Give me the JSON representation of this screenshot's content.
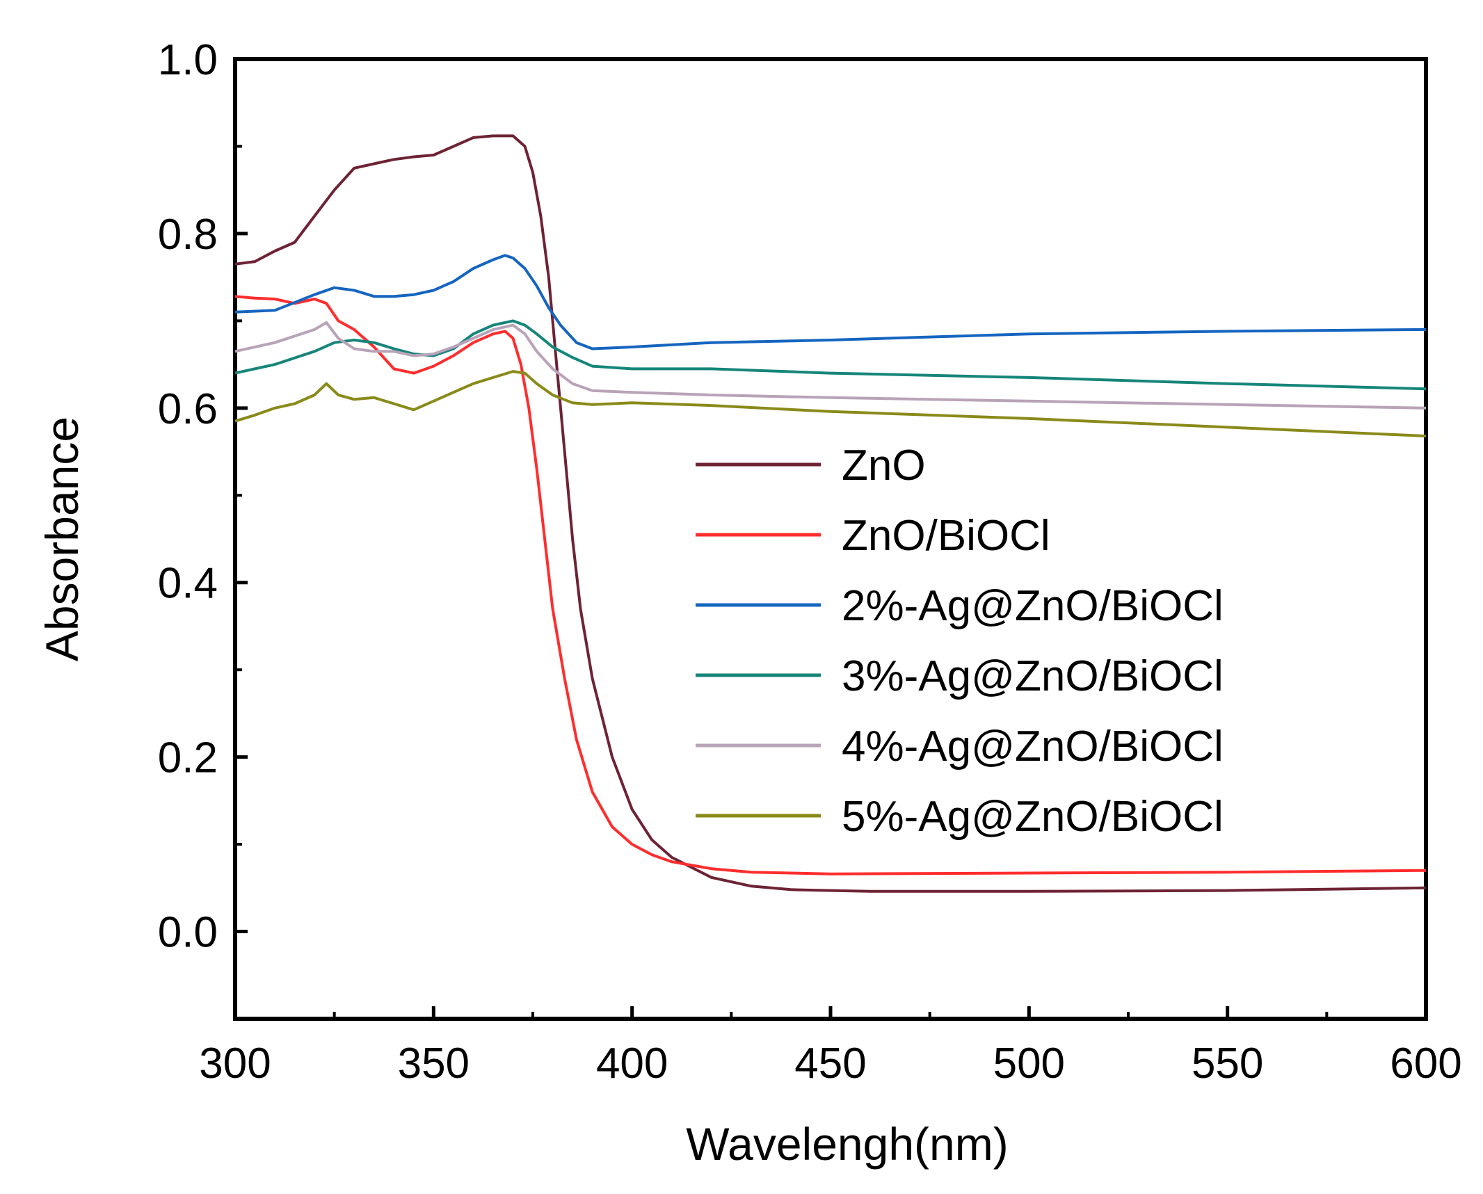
{
  "chart_data": {
    "type": "line",
    "title": "",
    "xlabel": "Wavelengh(nm)",
    "ylabel": "Absorbance",
    "xlim": [
      300,
      600
    ],
    "ylim": [
      -0.1,
      1.0
    ],
    "x_ticks": [
      300,
      350,
      400,
      450,
      500,
      550,
      600
    ],
    "x_tick_labels": [
      "300",
      "350",
      "400",
      "450",
      "500",
      "550",
      "600"
    ],
    "y_ticks": [
      0.0,
      0.2,
      0.4,
      0.6,
      0.8,
      1.0
    ],
    "y_tick_labels": [
      "0.0",
      "0.2",
      "0.4",
      "0.6",
      "0.8",
      "1.0"
    ],
    "grid": false,
    "legend_position": "center-right",
    "series": [
      {
        "name": "ZnO",
        "color": "#6e2335",
        "points": [
          [
            300,
            0.765
          ],
          [
            305,
            0.768
          ],
          [
            310,
            0.78
          ],
          [
            315,
            0.79
          ],
          [
            320,
            0.82
          ],
          [
            325,
            0.85
          ],
          [
            330,
            0.875
          ],
          [
            335,
            0.88
          ],
          [
            340,
            0.885
          ],
          [
            345,
            0.888
          ],
          [
            350,
            0.89
          ],
          [
            355,
            0.9
          ],
          [
            360,
            0.91
          ],
          [
            365,
            0.912
          ],
          [
            370,
            0.912
          ],
          [
            373,
            0.9
          ],
          [
            375,
            0.87
          ],
          [
            377,
            0.82
          ],
          [
            379,
            0.75
          ],
          [
            381,
            0.65
          ],
          [
            383,
            0.55
          ],
          [
            385,
            0.45
          ],
          [
            387,
            0.37
          ],
          [
            390,
            0.29
          ],
          [
            395,
            0.2
          ],
          [
            400,
            0.14
          ],
          [
            405,
            0.105
          ],
          [
            410,
            0.085
          ],
          [
            420,
            0.062
          ],
          [
            430,
            0.052
          ],
          [
            440,
            0.048
          ],
          [
            450,
            0.047
          ],
          [
            460,
            0.046
          ],
          [
            480,
            0.046
          ],
          [
            500,
            0.046
          ],
          [
            550,
            0.047
          ],
          [
            600,
            0.05
          ]
        ]
      },
      {
        "name": "ZnO/BiOCl",
        "color": "#ff2d2d",
        "points": [
          [
            300,
            0.728
          ],
          [
            305,
            0.726
          ],
          [
            310,
            0.725
          ],
          [
            315,
            0.72
          ],
          [
            320,
            0.725
          ],
          [
            323,
            0.72
          ],
          [
            326,
            0.7
          ],
          [
            330,
            0.69
          ],
          [
            335,
            0.67
          ],
          [
            340,
            0.645
          ],
          [
            345,
            0.64
          ],
          [
            350,
            0.648
          ],
          [
            355,
            0.66
          ],
          [
            360,
            0.675
          ],
          [
            365,
            0.685
          ],
          [
            368,
            0.688
          ],
          [
            370,
            0.68
          ],
          [
            372,
            0.65
          ],
          [
            374,
            0.6
          ],
          [
            376,
            0.53
          ],
          [
            378,
            0.45
          ],
          [
            380,
            0.37
          ],
          [
            383,
            0.29
          ],
          [
            386,
            0.22
          ],
          [
            390,
            0.16
          ],
          [
            395,
            0.12
          ],
          [
            400,
            0.1
          ],
          [
            405,
            0.088
          ],
          [
            410,
            0.08
          ],
          [
            420,
            0.072
          ],
          [
            430,
            0.068
          ],
          [
            450,
            0.066
          ],
          [
            500,
            0.067
          ],
          [
            550,
            0.068
          ],
          [
            600,
            0.07
          ]
        ]
      },
      {
        "name": "2%-Ag@ZnO/BiOCl",
        "color": "#1565c0",
        "points": [
          [
            300,
            0.71
          ],
          [
            310,
            0.712
          ],
          [
            320,
            0.73
          ],
          [
            325,
            0.738
          ],
          [
            330,
            0.735
          ],
          [
            335,
            0.728
          ],
          [
            340,
            0.728
          ],
          [
            345,
            0.73
          ],
          [
            350,
            0.735
          ],
          [
            355,
            0.745
          ],
          [
            360,
            0.76
          ],
          [
            365,
            0.77
          ],
          [
            368,
            0.775
          ],
          [
            370,
            0.772
          ],
          [
            373,
            0.76
          ],
          [
            376,
            0.74
          ],
          [
            379,
            0.715
          ],
          [
            382,
            0.695
          ],
          [
            386,
            0.675
          ],
          [
            390,
            0.668
          ],
          [
            400,
            0.67
          ],
          [
            420,
            0.675
          ],
          [
            450,
            0.678
          ],
          [
            500,
            0.685
          ],
          [
            550,
            0.688
          ],
          [
            600,
            0.69
          ]
        ]
      },
      {
        "name": "3%-Ag@ZnO/BiOCl",
        "color": "#16857a",
        "points": [
          [
            300,
            0.64
          ],
          [
            310,
            0.65
          ],
          [
            320,
            0.665
          ],
          [
            325,
            0.675
          ],
          [
            330,
            0.678
          ],
          [
            335,
            0.675
          ],
          [
            340,
            0.668
          ],
          [
            345,
            0.662
          ],
          [
            350,
            0.66
          ],
          [
            355,
            0.668
          ],
          [
            360,
            0.685
          ],
          [
            365,
            0.695
          ],
          [
            370,
            0.7
          ],
          [
            373,
            0.695
          ],
          [
            376,
            0.685
          ],
          [
            380,
            0.67
          ],
          [
            385,
            0.658
          ],
          [
            390,
            0.648
          ],
          [
            400,
            0.645
          ],
          [
            420,
            0.645
          ],
          [
            450,
            0.64
          ],
          [
            500,
            0.635
          ],
          [
            550,
            0.628
          ],
          [
            600,
            0.622
          ]
        ]
      },
      {
        "name": "4%-Ag@ZnO/BiOCl",
        "color": "#b8a3b8",
        "points": [
          [
            300,
            0.665
          ],
          [
            310,
            0.675
          ],
          [
            320,
            0.69
          ],
          [
            323,
            0.698
          ],
          [
            326,
            0.68
          ],
          [
            330,
            0.668
          ],
          [
            335,
            0.665
          ],
          [
            340,
            0.665
          ],
          [
            345,
            0.66
          ],
          [
            350,
            0.662
          ],
          [
            355,
            0.67
          ],
          [
            360,
            0.68
          ],
          [
            365,
            0.69
          ],
          [
            370,
            0.695
          ],
          [
            373,
            0.685
          ],
          [
            376,
            0.665
          ],
          [
            380,
            0.645
          ],
          [
            385,
            0.628
          ],
          [
            390,
            0.62
          ],
          [
            400,
            0.618
          ],
          [
            420,
            0.615
          ],
          [
            450,
            0.612
          ],
          [
            500,
            0.608
          ],
          [
            550,
            0.604
          ],
          [
            600,
            0.6
          ]
        ]
      },
      {
        "name": "5%-Ag@ZnO/BiOCl",
        "color": "#8a8a1a",
        "points": [
          [
            300,
            0.585
          ],
          [
            305,
            0.592
          ],
          [
            310,
            0.6
          ],
          [
            315,
            0.605
          ],
          [
            320,
            0.615
          ],
          [
            323,
            0.628
          ],
          [
            326,
            0.615
          ],
          [
            330,
            0.61
          ],
          [
            335,
            0.612
          ],
          [
            340,
            0.605
          ],
          [
            345,
            0.598
          ],
          [
            350,
            0.608
          ],
          [
            355,
            0.618
          ],
          [
            360,
            0.628
          ],
          [
            365,
            0.635
          ],
          [
            370,
            0.642
          ],
          [
            373,
            0.64
          ],
          [
            376,
            0.628
          ],
          [
            380,
            0.615
          ],
          [
            385,
            0.606
          ],
          [
            390,
            0.604
          ],
          [
            400,
            0.606
          ],
          [
            420,
            0.603
          ],
          [
            450,
            0.596
          ],
          [
            500,
            0.588
          ],
          [
            550,
            0.578
          ],
          [
            600,
            0.568
          ]
        ]
      }
    ]
  }
}
